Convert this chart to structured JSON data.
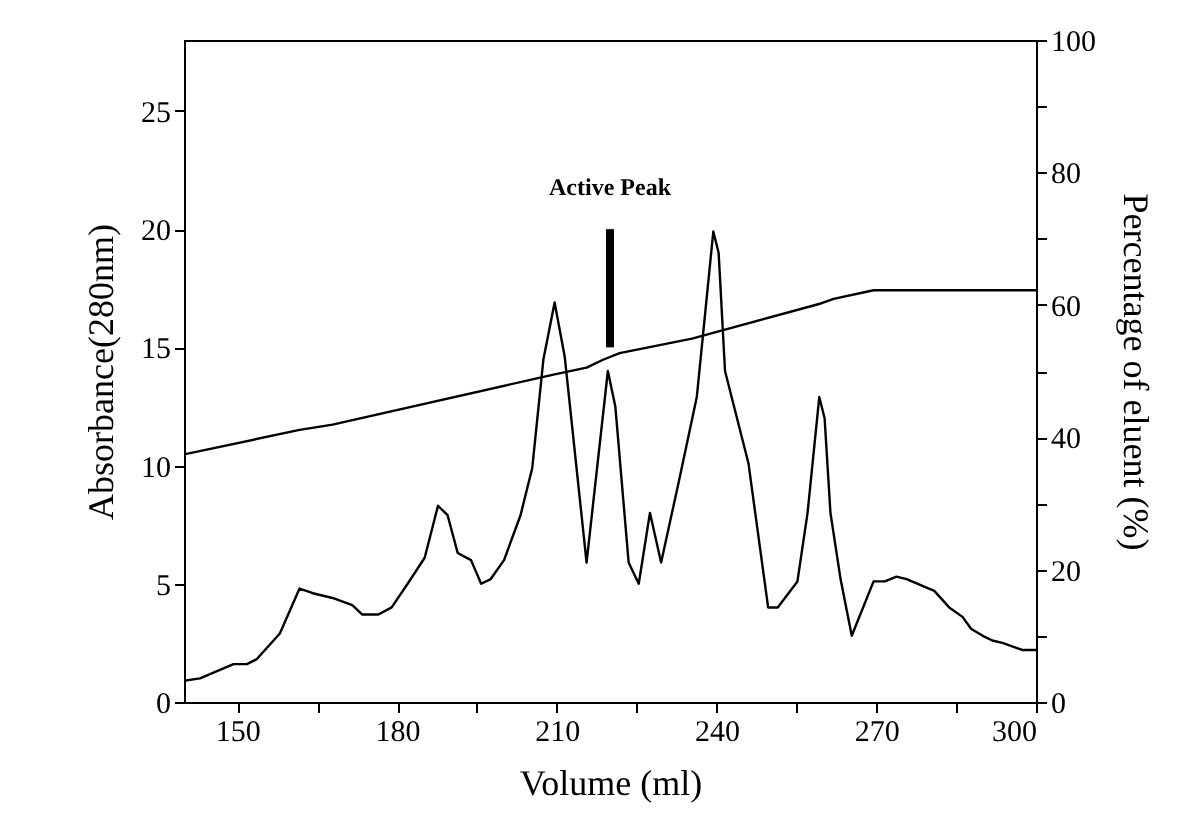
{
  "chart_data": {
    "type": "line",
    "xlabel": "Volume (ml)",
    "ylabel": "Absorbance(280nm)",
    "y2label": "Percentage of eluent (%)",
    "xlim": [
      140,
      300
    ],
    "xticks": [
      150,
      {
        "value": 165,
        "label": null
      },
      180,
      {
        "value": 195,
        "label": null
      },
      210,
      {
        "value": 225,
        "label": null
      },
      240,
      {
        "value": 255,
        "label": null
      },
      270,
      {
        "value": 285,
        "label": null
      },
      300
    ],
    "ylim": [
      0,
      28
    ],
    "yticks": [
      0,
      5,
      10,
      15,
      20,
      25
    ],
    "y2lim": [
      0,
      100
    ],
    "y2ticks": [
      0,
      {
        "value": 10,
        "label": null
      },
      20,
      {
        "value": 30,
        "label": null
      },
      40,
      {
        "value": 50,
        "label": null
      },
      60,
      {
        "value": 70,
        "label": null
      },
      80,
      {
        "value": 90,
        "label": null
      },
      100
    ],
    "series": [
      {
        "axis": "y",
        "color": "#000000",
        "x": [
          140,
          143,
          149.3,
          151.8,
          153.6,
          158,
          161.7,
          164.2,
          167.9,
          171.6,
          173.5,
          176.5,
          179,
          182,
          185.2,
          187.7,
          189.5,
          191.4,
          193.9,
          195.8,
          197.6,
          200.1,
          203.2,
          205.4,
          207.5,
          209.6,
          211.5,
          215.6,
          219.6,
          221,
          223.5,
          225.4,
          227.5,
          229.6,
          233,
          236.3,
          239.4,
          240.4,
          241.6,
          246,
          249.7,
          251.5,
          255.2,
          257.1,
          259.3,
          260.3,
          261.4,
          263.3,
          265.4,
          269.5,
          271.6,
          273.8,
          275.7,
          280.9,
          283.7,
          286.2,
          287.8,
          290,
          291.8,
          293.7,
          297.4,
          300
        ],
        "values": [
          0.9,
          1.0,
          1.6,
          1.6,
          1.8,
          2.9,
          4.8,
          4.6,
          4.4,
          4.1,
          3.7,
          3.7,
          4.0,
          5.0,
          6.1,
          8.3,
          7.9,
          6.3,
          6.0,
          5.0,
          5.2,
          6.0,
          7.9,
          9.9,
          14.5,
          16.9,
          14.6,
          5.9,
          14,
          12.5,
          5.9,
          5,
          8,
          5.9,
          9.4,
          12.9,
          19.9,
          19,
          14,
          10.1,
          4,
          4,
          5.1,
          8,
          12.9,
          12,
          8,
          5.2,
          2.8,
          5.1,
          5.1,
          5.3,
          5.2,
          4.7,
          4.0,
          3.6,
          3.1,
          2.8,
          2.6,
          2.5,
          2.2,
          2.2
        ]
      },
      {
        "axis": "y2",
        "color": "#000000",
        "x": [
          140,
          161.7,
          167.9,
          209.6,
          215.6,
          218.7,
          221.8,
          235.4,
          259.6,
          262,
          269.5,
          300
        ],
        "values": [
          37.4,
          41.1,
          41.9,
          49.5,
          50.5,
          51.7,
          52.7,
          54.9,
          60.2,
          60.9,
          62.2,
          62.2
        ]
      },
      {
        "axis": "y",
        "color": "#000000",
        "x": [
          220,
          220
        ],
        "values": [
          15,
          20
        ]
      }
    ],
    "annotations": [
      {
        "text": "Active Peak",
        "x": 220,
        "y": 20
      }
    ]
  }
}
